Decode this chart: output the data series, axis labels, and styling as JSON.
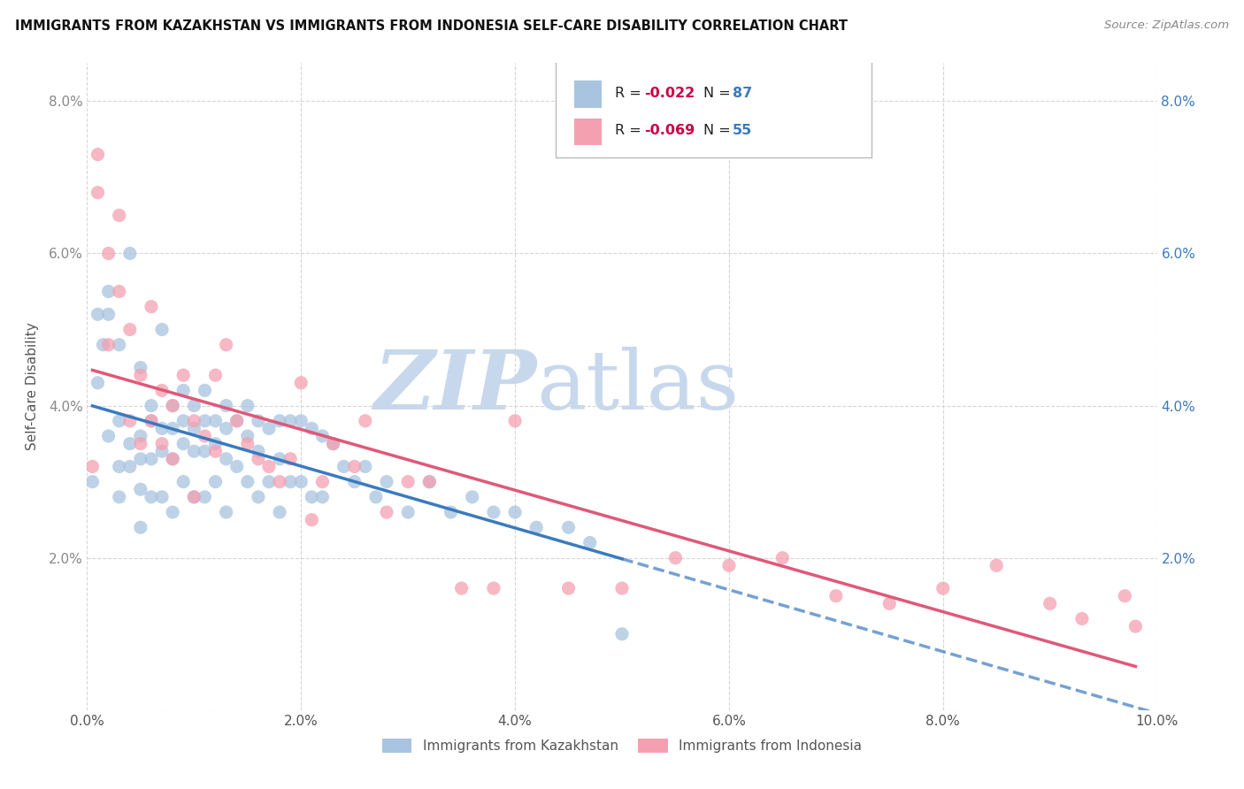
{
  "title": "IMMIGRANTS FROM KAZAKHSTAN VS IMMIGRANTS FROM INDONESIA SELF-CARE DISABILITY CORRELATION CHART",
  "source": "Source: ZipAtlas.com",
  "ylabel": "Self-Care Disability",
  "xlim": [
    0.0,
    0.1
  ],
  "ylim": [
    0.0,
    0.085
  ],
  "xticks": [
    0.0,
    0.02,
    0.04,
    0.06,
    0.08,
    0.1
  ],
  "yticks": [
    0.0,
    0.02,
    0.04,
    0.06,
    0.08
  ],
  "xtick_labels": [
    "0.0%",
    "2.0%",
    "4.0%",
    "6.0%",
    "8.0%",
    "10.0%"
  ],
  "ytick_labels": [
    "",
    "2.0%",
    "4.0%",
    "6.0%",
    "8.0%"
  ],
  "kaz_color": "#a8c4e0",
  "ind_color": "#f4a0b0",
  "kaz_R": -0.022,
  "kaz_N": 87,
  "ind_R": -0.069,
  "ind_N": 55,
  "kaz_line_color": "#3a7abf",
  "ind_line_color": "#e05878",
  "watermark_zip": "ZIP",
  "watermark_atlas": "atlas",
  "watermark_color_zip": "#c8d8ec",
  "watermark_color_atlas": "#c8d8ec",
  "legend_R_color": "#cc0044",
  "legend_N_color": "#3a7abf",
  "kaz_x": [
    0.0005,
    0.001,
    0.001,
    0.0015,
    0.002,
    0.002,
    0.002,
    0.003,
    0.003,
    0.003,
    0.003,
    0.004,
    0.004,
    0.004,
    0.005,
    0.005,
    0.005,
    0.005,
    0.005,
    0.006,
    0.006,
    0.006,
    0.006,
    0.007,
    0.007,
    0.007,
    0.007,
    0.008,
    0.008,
    0.008,
    0.008,
    0.009,
    0.009,
    0.009,
    0.009,
    0.01,
    0.01,
    0.01,
    0.01,
    0.011,
    0.011,
    0.011,
    0.011,
    0.012,
    0.012,
    0.012,
    0.013,
    0.013,
    0.013,
    0.013,
    0.014,
    0.014,
    0.015,
    0.015,
    0.015,
    0.016,
    0.016,
    0.016,
    0.017,
    0.017,
    0.018,
    0.018,
    0.018,
    0.019,
    0.019,
    0.02,
    0.02,
    0.021,
    0.021,
    0.022,
    0.022,
    0.023,
    0.024,
    0.025,
    0.026,
    0.027,
    0.028,
    0.03,
    0.032,
    0.034,
    0.036,
    0.038,
    0.04,
    0.042,
    0.045,
    0.047,
    0.05
  ],
  "kaz_y": [
    0.03,
    0.043,
    0.052,
    0.048,
    0.036,
    0.052,
    0.055,
    0.038,
    0.048,
    0.032,
    0.028,
    0.032,
    0.035,
    0.06,
    0.045,
    0.036,
    0.033,
    0.029,
    0.024,
    0.04,
    0.038,
    0.033,
    0.028,
    0.05,
    0.037,
    0.034,
    0.028,
    0.04,
    0.037,
    0.033,
    0.026,
    0.042,
    0.038,
    0.035,
    0.03,
    0.04,
    0.037,
    0.034,
    0.028,
    0.042,
    0.038,
    0.034,
    0.028,
    0.038,
    0.035,
    0.03,
    0.04,
    0.037,
    0.033,
    0.026,
    0.038,
    0.032,
    0.04,
    0.036,
    0.03,
    0.038,
    0.034,
    0.028,
    0.037,
    0.03,
    0.038,
    0.033,
    0.026,
    0.038,
    0.03,
    0.038,
    0.03,
    0.037,
    0.028,
    0.036,
    0.028,
    0.035,
    0.032,
    0.03,
    0.032,
    0.028,
    0.03,
    0.026,
    0.03,
    0.026,
    0.028,
    0.026,
    0.026,
    0.024,
    0.024,
    0.022,
    0.01
  ],
  "ind_x": [
    0.0005,
    0.001,
    0.001,
    0.002,
    0.002,
    0.003,
    0.003,
    0.004,
    0.004,
    0.005,
    0.005,
    0.006,
    0.006,
    0.007,
    0.007,
    0.008,
    0.008,
    0.009,
    0.01,
    0.01,
    0.011,
    0.012,
    0.012,
    0.013,
    0.014,
    0.015,
    0.016,
    0.017,
    0.018,
    0.019,
    0.02,
    0.021,
    0.022,
    0.023,
    0.025,
    0.026,
    0.028,
    0.03,
    0.032,
    0.035,
    0.038,
    0.04,
    0.045,
    0.05,
    0.055,
    0.06,
    0.065,
    0.07,
    0.075,
    0.08,
    0.085,
    0.09,
    0.093,
    0.097,
    0.098
  ],
  "ind_y": [
    0.032,
    0.068,
    0.073,
    0.048,
    0.06,
    0.065,
    0.055,
    0.038,
    0.05,
    0.035,
    0.044,
    0.053,
    0.038,
    0.042,
    0.035,
    0.04,
    0.033,
    0.044,
    0.038,
    0.028,
    0.036,
    0.034,
    0.044,
    0.048,
    0.038,
    0.035,
    0.033,
    0.032,
    0.03,
    0.033,
    0.043,
    0.025,
    0.03,
    0.035,
    0.032,
    0.038,
    0.026,
    0.03,
    0.03,
    0.016,
    0.016,
    0.038,
    0.016,
    0.016,
    0.02,
    0.019,
    0.02,
    0.015,
    0.014,
    0.016,
    0.019,
    0.014,
    0.012,
    0.015,
    0.011
  ]
}
